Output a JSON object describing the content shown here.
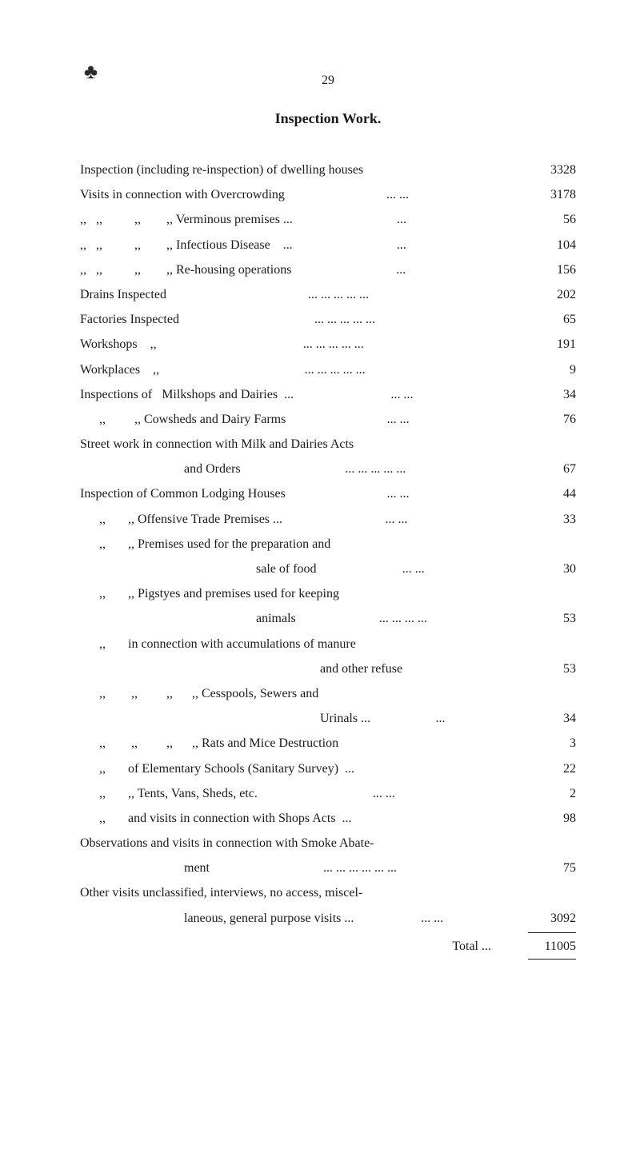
{
  "page": {
    "number": "29",
    "title": "Inspection Work."
  },
  "entries": [
    {
      "label": "Inspection (including re-inspection) of dwelling houses",
      "value": "3328",
      "indent": 0,
      "leaders": ""
    },
    {
      "label": "Visits in connection with Overcrowding",
      "value": "3178",
      "indent": 0,
      "leaders": "...   ..."
    },
    {
      "label": ",,   ,,          ,,        ,, Verminous premises ...",
      "value": "56",
      "indent": 0,
      "leaders": "..."
    },
    {
      "label": ",,   ,,          ,,        ,, Infectious Disease    ...",
      "value": "104",
      "indent": 0,
      "leaders": "..."
    },
    {
      "label": ",,   ,,          ,,        ,, Re-housing operations",
      "value": "156",
      "indent": 0,
      "leaders": "..."
    },
    {
      "label": "Drains Inspected",
      "value": "202",
      "indent": 0,
      "leaders": "...   ...   ...   ...   ..."
    },
    {
      "label": "Factories Inspected",
      "value": "65",
      "indent": 0,
      "leaders": "...   ...   ...   ...   ..."
    },
    {
      "label": "Workshops    ,,",
      "value": "191",
      "indent": 0,
      "leaders": "...   ...   ...   ...   ..."
    },
    {
      "label": "Workplaces    ,,",
      "value": "9",
      "indent": 0,
      "leaders": "...   ...   ...   ...   ..."
    },
    {
      "label": "Inspections of   Milkshops and Dairies  ...",
      "value": "34",
      "indent": 0,
      "leaders": "...   ..."
    },
    {
      "label": "      ,,         ,, Cowsheds and Dairy Farms",
      "value": "76",
      "indent": 0,
      "leaders": "...   ..."
    },
    {
      "label": "Street work in connection with Milk and Dairies Acts",
      "value": "",
      "indent": 0,
      "wrap": true
    },
    {
      "label": "and Orders",
      "value": "67",
      "indent": 0,
      "leaders": "...   ...   ...   ...   ...",
      "cont": true,
      "contIndent": 130
    },
    {
      "label": "Inspection of Common Lodging Houses",
      "value": "44",
      "indent": 0,
      "leaders": "...   ..."
    },
    {
      "label": "      ,,       ,, Offensive Trade Premises ...",
      "value": "33",
      "indent": 0,
      "leaders": "...   ..."
    },
    {
      "label": "      ,,       ,, Premises used for the preparation and",
      "value": "",
      "indent": 0,
      "wrap": true
    },
    {
      "label": "sale of food",
      "value": "30",
      "indent": 0,
      "leaders": "...   ...",
      "cont": true,
      "contIndent": 220
    },
    {
      "label": "      ,,       ,, Pigstyes and premises used for keeping",
      "value": "",
      "indent": 0,
      "wrap": true
    },
    {
      "label": "animals",
      "value": "53",
      "indent": 0,
      "leaders": "...   ...   ...   ...",
      "cont": true,
      "contIndent": 220
    },
    {
      "label": "      ,,       in connection with accumulations of manure",
      "value": "",
      "indent": 0,
      "wrap": true
    },
    {
      "label": "and other refuse",
      "value": "53",
      "indent": 0,
      "leaders": "",
      "cont": true,
      "contIndent": 300
    },
    {
      "label": "      ,,        ,,         ,,      ,, Cesspools, Sewers and",
      "value": "",
      "indent": 0,
      "wrap": true
    },
    {
      "label": "Urinals    ...",
      "value": "34",
      "indent": 0,
      "leaders": "...",
      "cont": true,
      "contIndent": 300
    },
    {
      "label": "      ,,        ,,         ,,      ,, Rats and Mice Destruction",
      "value": "3",
      "indent": 0,
      "leaders": ""
    },
    {
      "label": "      ,,       of Elementary Schools (Sanitary Survey)  ...",
      "value": "22",
      "indent": 0,
      "leaders": ""
    },
    {
      "label": "      ,,       ,, Tents, Vans, Sheds, etc.",
      "value": "2",
      "indent": 0,
      "leaders": "...   ..."
    },
    {
      "label": "      ,,       and visits in connection with Shops Acts  ...",
      "value": "98",
      "indent": 0,
      "leaders": ""
    },
    {
      "label": "Observations and visits in connection with Smoke Abate-",
      "value": "",
      "indent": 0,
      "wrap": true
    },
    {
      "label": "ment",
      "value": "75",
      "indent": 0,
      "leaders": "...   ...   ...   ...   ...   ...",
      "cont": true,
      "contIndent": 130
    },
    {
      "label": "Other visits unclassified, interviews, no access, miscel-",
      "value": "",
      "indent": 0,
      "wrap": true
    },
    {
      "label": "laneous, general purpose visits ...",
      "value": "3092",
      "indent": 0,
      "leaders": "...   ...",
      "cont": true,
      "contIndent": 130
    }
  ],
  "total": {
    "label": "Total    ...",
    "value": "11005"
  }
}
